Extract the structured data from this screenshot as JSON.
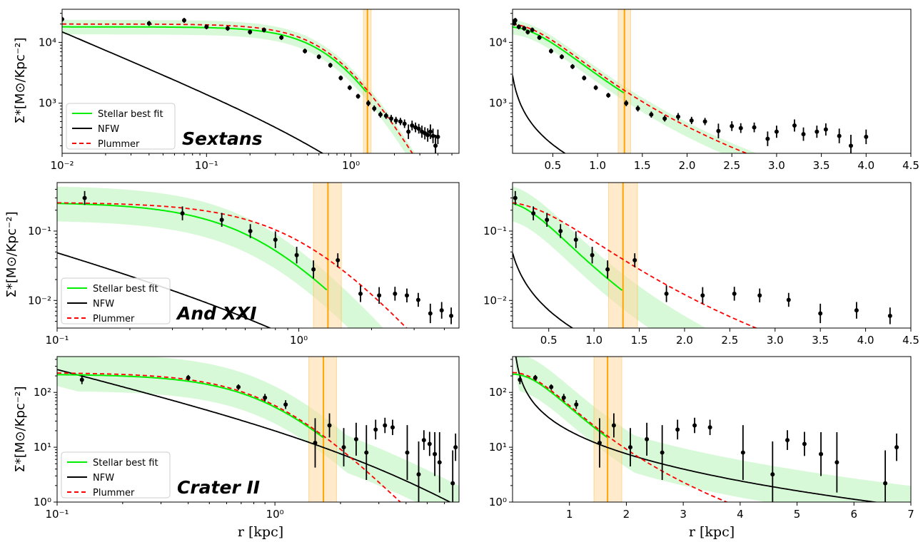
{
  "figure": {
    "ylabel": "Σ*[M⊙/Kpc⁻²]",
    "xlabel": "r [kpc]"
  },
  "legend": {
    "stellar": "Stellar best fit",
    "nfw": "NFW",
    "plummer": "Plummer"
  },
  "colors": {
    "stellar": "#00ee00",
    "band": "#90ee90",
    "nfw": "#000000",
    "plummer": "#ff0000",
    "rcut": "#ffa500",
    "rcut_band": "#ffd9a0",
    "points": "#000000"
  },
  "chart_data": [
    {
      "type": "line",
      "panel": "sextans-log",
      "galaxy": "Sextans",
      "xscale": "log",
      "yscale": "log",
      "xlim": [
        0.01,
        5.6
      ],
      "ylim": [
        150,
        35000
      ],
      "xticks": [
        {
          "v": 0.01,
          "label": "10⁻²"
        },
        {
          "v": 0.1,
          "label": "10⁻¹"
        },
        {
          "v": 1,
          "label": "10⁰"
        }
      ],
      "yticks": [
        {
          "v": 1000,
          "label": "10³"
        },
        {
          "v": 10000,
          "label": "10⁴"
        }
      ],
      "rcut": 1.3,
      "rcut_band": [
        1.22,
        1.38
      ],
      "plummer": {
        "s0": 20000,
        "a": 0.82
      },
      "stellar": {
        "s0": 18000,
        "a": 0.82
      },
      "nfw": {
        "A": 60,
        "rs": 2.5
      },
      "points": {
        "x": [
          0.01,
          0.04,
          0.07,
          0.1,
          0.14,
          0.2,
          0.25,
          0.33,
          0.48,
          0.6,
          0.72,
          0.85,
          0.98,
          1.12,
          1.32,
          1.45,
          1.6,
          1.75,
          1.9,
          2.05,
          2.2,
          2.35,
          2.5,
          2.65,
          2.8,
          2.95,
          3.1,
          3.25,
          3.4,
          3.55,
          3.7,
          3.85,
          4.0
        ],
        "y": [
          24000,
          20500,
          23000,
          18000,
          17000,
          14800,
          16000,
          12000,
          7200,
          5800,
          4200,
          2600,
          1800,
          1300,
          1000,
          820,
          650,
          620,
          560,
          520,
          500,
          460,
          340,
          430,
          400,
          380,
          340,
          320,
          300,
          340,
          290,
          200,
          280
        ],
        "err": [
          0.04,
          0.04,
          0.04,
          0.04,
          0.04,
          0.04,
          0.04,
          0.04,
          0.04,
          0.04,
          0.04,
          0.04,
          0.04,
          0.04,
          0.05,
          0.05,
          0.05,
          0.05,
          0.06,
          0.06,
          0.06,
          0.07,
          0.12,
          0.08,
          0.08,
          0.08,
          0.1,
          0.1,
          0.11,
          0.12,
          0.12,
          0.18,
          0.12
        ]
      },
      "band_lo": 0.75,
      "band_hi": 1.3
    },
    {
      "type": "line",
      "panel": "sextans-lin",
      "galaxy": "",
      "xscale": "linear",
      "yscale": "log",
      "xlim": [
        0.05,
        4.5
      ],
      "ylim": [
        150,
        35000
      ],
      "xticks": [
        {
          "v": 0.5,
          "label": "0.5"
        },
        {
          "v": 1.0,
          "label": "1.0"
        },
        {
          "v": 1.5,
          "label": "1.5"
        },
        {
          "v": 2.0,
          "label": "2.0"
        },
        {
          "v": 2.5,
          "label": "2.5"
        },
        {
          "v": 3.0,
          "label": "3.0"
        },
        {
          "v": 3.5,
          "label": "3.5"
        },
        {
          "v": 4.0,
          "label": "4.0"
        },
        {
          "v": 4.5,
          "label": "4.5"
        }
      ],
      "yticks": [
        {
          "v": 1000,
          "label": "10³"
        },
        {
          "v": 10000,
          "label": "10⁴"
        }
      ],
      "rcut": 1.3,
      "rcut_band": [
        1.23,
        1.37
      ],
      "plummer": {
        "s0": 20000,
        "a": 0.82
      },
      "stellar": {
        "s0": 18000,
        "a": 0.82
      },
      "nfw": {
        "A": 60,
        "rs": 2.5
      },
      "points": {
        "x": [
          0.05,
          0.07,
          0.08,
          0.12,
          0.18,
          0.22,
          0.27,
          0.35,
          0.48,
          0.6,
          0.72,
          0.85,
          0.98,
          1.12,
          1.32,
          1.45,
          1.6,
          1.75,
          1.9,
          2.05,
          2.2,
          2.35,
          2.5,
          2.6,
          2.75,
          2.9,
          3.0,
          3.2,
          3.3,
          3.45,
          3.55,
          3.7,
          3.83,
          4.0
        ],
        "y": [
          22000,
          20500,
          23000,
          18000,
          17000,
          14800,
          16000,
          12000,
          7200,
          5800,
          4000,
          2600,
          1800,
          1350,
          1000,
          820,
          650,
          560,
          600,
          520,
          500,
          350,
          420,
          390,
          400,
          260,
          340,
          430,
          310,
          340,
          370,
          290,
          200,
          280
        ],
        "err": [
          0.04,
          0.04,
          0.04,
          0.04,
          0.04,
          0.04,
          0.04,
          0.04,
          0.04,
          0.04,
          0.04,
          0.04,
          0.04,
          0.04,
          0.05,
          0.05,
          0.05,
          0.05,
          0.06,
          0.06,
          0.06,
          0.12,
          0.08,
          0.08,
          0.08,
          0.12,
          0.1,
          0.1,
          0.11,
          0.1,
          0.1,
          0.12,
          0.18,
          0.12
        ]
      },
      "band_lo": 0.75,
      "band_hi": 1.3
    },
    {
      "type": "line",
      "panel": "andxxi-log",
      "galaxy": "And XXI",
      "xscale": "log",
      "yscale": "log",
      "xlim": [
        0.1,
        4.6
      ],
      "ylim": [
        0.004,
        0.5
      ],
      "xticks": [
        {
          "v": 0.1,
          "label": "10⁻¹"
        },
        {
          "v": 1,
          "label": "10⁰"
        }
      ],
      "yticks": [
        {
          "v": 0.01,
          "label": "10⁻²"
        },
        {
          "v": 0.1,
          "label": "10⁻¹"
        }
      ],
      "rcut": 1.32,
      "rcut_band": [
        1.15,
        1.5
      ],
      "plummer": {
        "s0": 0.26,
        "a": 1.05
      },
      "stellar": {
        "s0": 0.26,
        "a": 0.72
      },
      "nfw": {
        "A": 0.0022,
        "rs": 2.4
      },
      "points": {
        "x": [
          0.13,
          0.33,
          0.48,
          0.63,
          0.8,
          0.98,
          1.15,
          1.45,
          1.8,
          2.15,
          2.5,
          2.8,
          3.12,
          3.5,
          3.9,
          4.27
        ],
        "y": [
          0.3,
          0.18,
          0.145,
          0.1,
          0.075,
          0.045,
          0.028,
          0.038,
          0.0125,
          0.0118,
          0.0125,
          0.0118,
          0.0102,
          0.0065,
          0.0072,
          0.006
        ],
        "err": [
          0.1,
          0.1,
          0.1,
          0.1,
          0.12,
          0.12,
          0.13,
          0.1,
          0.12,
          0.12,
          0.1,
          0.1,
          0.1,
          0.14,
          0.12,
          0.12
        ]
      },
      "band_lo": 0.55,
      "band_hi": 1.75
    },
    {
      "type": "line",
      "panel": "andxxi-lin",
      "galaxy": "",
      "xscale": "linear",
      "yscale": "log",
      "xlim": [
        0.1,
        4.5
      ],
      "ylim": [
        0.004,
        0.5
      ],
      "xticks": [
        {
          "v": 0.5,
          "label": "0.5"
        },
        {
          "v": 1.0,
          "label": "1.0"
        },
        {
          "v": 1.5,
          "label": "1.5"
        },
        {
          "v": 2.0,
          "label": "2.0"
        },
        {
          "v": 2.5,
          "label": "2.5"
        },
        {
          "v": 3.0,
          "label": "3.0"
        },
        {
          "v": 3.5,
          "label": "3.5"
        },
        {
          "v": 4.0,
          "label": "4.0"
        },
        {
          "v": 4.5,
          "label": "4.5"
        }
      ],
      "yticks": [
        {
          "v": 0.01,
          "label": "10⁻²"
        },
        {
          "v": 0.1,
          "label": "10⁻¹"
        }
      ],
      "rcut": 1.32,
      "rcut_band": [
        1.16,
        1.48
      ],
      "plummer": {
        "s0": 0.26,
        "a": 1.05
      },
      "stellar": {
        "s0": 0.26,
        "a": 0.72
      },
      "nfw": {
        "A": 0.0022,
        "rs": 2.4
      },
      "points": {
        "x": [
          0.13,
          0.33,
          0.48,
          0.63,
          0.8,
          0.98,
          1.15,
          1.45,
          1.8,
          2.2,
          2.55,
          2.83,
          3.15,
          3.5,
          3.9,
          4.27
        ],
        "y": [
          0.3,
          0.18,
          0.145,
          0.1,
          0.075,
          0.045,
          0.028,
          0.038,
          0.0125,
          0.0118,
          0.0125,
          0.0118,
          0.0102,
          0.0065,
          0.0072,
          0.006
        ],
        "err": [
          0.1,
          0.1,
          0.1,
          0.1,
          0.12,
          0.12,
          0.13,
          0.1,
          0.12,
          0.12,
          0.1,
          0.1,
          0.1,
          0.14,
          0.12,
          0.12
        ]
      },
      "band_lo": 0.55,
      "band_hi": 1.75
    },
    {
      "type": "line",
      "panel": "crater-log",
      "galaxy": "Crater II",
      "xscale": "log",
      "yscale": "log",
      "xlim": [
        0.1,
        7.0
      ],
      "ylim": [
        1,
        450
      ],
      "xticks": [
        {
          "v": 0.1,
          "label": "10⁻¹"
        },
        {
          "v": 1,
          "label": "10⁰"
        }
      ],
      "yticks": [
        {
          "v": 1,
          "label": "10⁰"
        },
        {
          "v": 10,
          "label": "10¹"
        },
        {
          "v": 100,
          "label": "10²"
        }
      ],
      "rcut": 1.67,
      "rcut_band": [
        1.43,
        1.92
      ],
      "plummer": {
        "s0": 230,
        "a": 1.0
      },
      "stellar": {
        "s0": 215,
        "a": 1.0
      },
      "nfw": {
        "A": 4.5,
        "rs": 6.0
      },
      "points": {
        "x": [
          0.13,
          0.4,
          0.68,
          0.9,
          1.12,
          1.53,
          1.78,
          2.07,
          2.36,
          2.63,
          2.9,
          3.2,
          3.47,
          4.05,
          4.57,
          4.83,
          5.13,
          5.42,
          5.7,
          6.55,
          6.75
        ],
        "y": [
          170,
          185,
          125,
          80,
          60,
          12,
          25,
          10,
          14,
          8,
          21,
          25,
          23,
          8,
          3.2,
          13.5,
          11.5,
          7.5,
          5.3,
          2.2,
          10
        ],
        "err": [
          0.08,
          0.05,
          0.05,
          0.07,
          0.08,
          0.45,
          0.22,
          0.35,
          0.3,
          0.5,
          0.18,
          0.14,
          0.14,
          0.5,
          0.6,
          0.18,
          0.22,
          0.4,
          0.55,
          0.6,
          0.25
        ]
      },
      "band_lo": 0.5,
      "band_hi": 2.4
    },
    {
      "type": "line",
      "panel": "crater-lin",
      "galaxy": "",
      "xscale": "linear",
      "yscale": "log",
      "xlim": [
        0.0,
        7.0
      ],
      "ylim": [
        1,
        450
      ],
      "xticks": [
        {
          "v": 1,
          "label": "1"
        },
        {
          "v": 2,
          "label": "2"
        },
        {
          "v": 3,
          "label": "3"
        },
        {
          "v": 4,
          "label": "4"
        },
        {
          "v": 5,
          "label": "5"
        },
        {
          "v": 6,
          "label": "6"
        },
        {
          "v": 7,
          "label": "7"
        }
      ],
      "yticks": [
        {
          "v": 1,
          "label": "10⁰"
        },
        {
          "v": 10,
          "label": "10¹"
        },
        {
          "v": 100,
          "label": "10²"
        }
      ],
      "rcut": 1.67,
      "rcut_band": [
        1.43,
        1.92
      ],
      "plummer": {
        "s0": 230,
        "a": 1.0
      },
      "stellar": {
        "s0": 215,
        "a": 1.0
      },
      "nfw": {
        "A": 4.5,
        "rs": 6.0
      },
      "points": {
        "x": [
          0.13,
          0.4,
          0.68,
          0.9,
          1.12,
          1.53,
          1.78,
          2.07,
          2.36,
          2.63,
          2.9,
          3.2,
          3.47,
          4.05,
          4.57,
          4.83,
          5.13,
          5.42,
          5.7,
          6.55,
          6.75
        ],
        "y": [
          170,
          185,
          125,
          80,
          60,
          12,
          25,
          10,
          14,
          8,
          21,
          25,
          23,
          8,
          3.2,
          13.5,
          11.5,
          7.5,
          5.3,
          2.2,
          10
        ],
        "err": [
          0.08,
          0.05,
          0.05,
          0.07,
          0.08,
          0.45,
          0.22,
          0.35,
          0.3,
          0.5,
          0.18,
          0.14,
          0.14,
          0.5,
          0.6,
          0.18,
          0.22,
          0.4,
          0.55,
          0.6,
          0.25
        ]
      },
      "band_lo": 0.5,
      "band_hi": 2.4
    }
  ]
}
